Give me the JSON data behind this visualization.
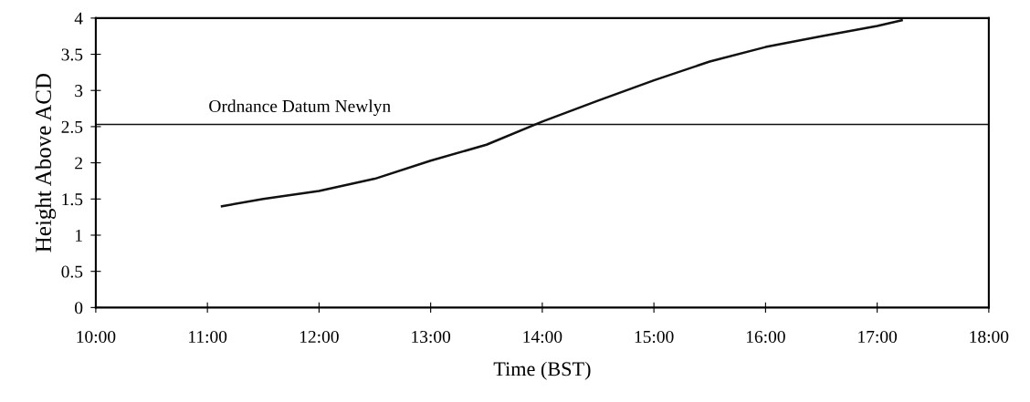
{
  "chart_data": {
    "type": "line",
    "xlabel": "Time (BST)",
    "ylabel": "Height Above ACD",
    "x": [
      11.13,
      11.5,
      12,
      12.5,
      13,
      13.5,
      14,
      14.5,
      15,
      15.5,
      16,
      16.5,
      17,
      17.22
    ],
    "series": [
      {
        "color": "#111111",
        "values": [
          1.4,
          1.5,
          1.61,
          1.78,
          2.03,
          2.25,
          2.57,
          2.86,
          3.14,
          3.4,
          3.6,
          3.75,
          3.89,
          3.97
        ]
      }
    ],
    "xlim": [
      10,
      18
    ],
    "ylim": [
      0,
      4
    ],
    "xticks": [
      {
        "value": 10,
        "label": "10:00"
      },
      {
        "value": 11,
        "label": "11:00"
      },
      {
        "value": 12,
        "label": "12:00"
      },
      {
        "value": 13,
        "label": "13:00"
      },
      {
        "value": 14,
        "label": "14:00"
      },
      {
        "value": 15,
        "label": "15:00"
      },
      {
        "value": 16,
        "label": "16:00"
      },
      {
        "value": 17,
        "label": "17:00"
      },
      {
        "value": 18,
        "label": "18:00"
      }
    ],
    "yticks": [
      0,
      0.5,
      1,
      1.5,
      2,
      2.5,
      3,
      3.5,
      4
    ],
    "ref_lines": [
      {
        "axis": "y",
        "value": 2.53,
        "label": "Ordnance Datum Newlyn",
        "color": "#111111"
      }
    ],
    "grid": false,
    "legend": false,
    "marker": "none",
    "line_style": "solid"
  }
}
